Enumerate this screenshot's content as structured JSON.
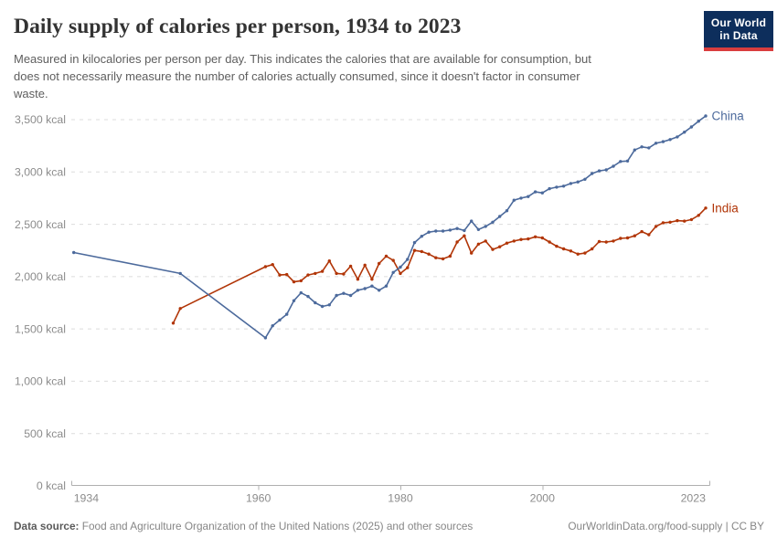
{
  "header": {
    "title": "Daily supply of calories per person, 1934 to 2023",
    "subtitle_lines": [
      "Measured in kilocalories per person per day. This indicates the calories that are available for consumption, but",
      "does not necessarily measure the number of calories actually consumed, since it doesn't factor in consumer",
      "waste."
    ],
    "logo": {
      "line1": "Our World",
      "line2": "in Data",
      "bg_color": "#0d2e5c",
      "accent_color": "#d93d3e"
    }
  },
  "footer": {
    "source_label": "Data source:",
    "source_text": " Food and Agriculture Organization of the United Nations (2025) and other sources",
    "credit_text": "OurWorldinData.org/food-supply | CC BY"
  },
  "chart_data": {
    "type": "line",
    "title": "Daily supply of calories per person, 1934 to 2023",
    "unit": "kcal",
    "xlabel": "",
    "ylabel": "",
    "xlim": [
      1933.65,
      2023.65
    ],
    "ylim": [
      0,
      3500
    ],
    "x_ticks": [
      1934,
      1960,
      1980,
      2000,
      2023
    ],
    "y_ticks": [
      0,
      500,
      1000,
      1500,
      2000,
      2500,
      3000,
      3500
    ],
    "y_tick_suffix": " kcal",
    "grid": "horizontal-dashed",
    "legend_position": "end-of-line-labels",
    "colors": {
      "grid": "#dcdcdc",
      "axis": "#b0b0b0",
      "tick_label": "#8c8c8c"
    },
    "series": [
      {
        "name": "India",
        "color": "#B13507",
        "points": [
          [
            1948,
            1555
          ],
          [
            1949,
            1695
          ],
          [
            1961,
            2095
          ],
          [
            1962,
            2115
          ],
          [
            1963,
            2015
          ],
          [
            1964,
            2020
          ],
          [
            1965,
            1950
          ],
          [
            1966,
            1960
          ],
          [
            1967,
            2015
          ],
          [
            1968,
            2030
          ],
          [
            1969,
            2050
          ],
          [
            1970,
            2150
          ],
          [
            1971,
            2030
          ],
          [
            1972,
            2025
          ],
          [
            1973,
            2100
          ],
          [
            1974,
            1975
          ],
          [
            1975,
            2110
          ],
          [
            1976,
            1975
          ],
          [
            1977,
            2125
          ],
          [
            1978,
            2195
          ],
          [
            1979,
            2155
          ],
          [
            1980,
            2030
          ],
          [
            1981,
            2085
          ],
          [
            1982,
            2250
          ],
          [
            1983,
            2240
          ],
          [
            1984,
            2215
          ],
          [
            1985,
            2180
          ],
          [
            1986,
            2170
          ],
          [
            1987,
            2195
          ],
          [
            1988,
            2330
          ],
          [
            1989,
            2390
          ],
          [
            1990,
            2225
          ],
          [
            1991,
            2310
          ],
          [
            1992,
            2340
          ],
          [
            1993,
            2260
          ],
          [
            1994,
            2285
          ],
          [
            1995,
            2320
          ],
          [
            1996,
            2340
          ],
          [
            1997,
            2355
          ],
          [
            1998,
            2360
          ],
          [
            1999,
            2380
          ],
          [
            2000,
            2370
          ],
          [
            2001,
            2330
          ],
          [
            2002,
            2290
          ],
          [
            2003,
            2265
          ],
          [
            2004,
            2245
          ],
          [
            2005,
            2215
          ],
          [
            2006,
            2225
          ],
          [
            2007,
            2265
          ],
          [
            2008,
            2335
          ],
          [
            2009,
            2330
          ],
          [
            2010,
            2340
          ],
          [
            2011,
            2365
          ],
          [
            2012,
            2370
          ],
          [
            2013,
            2390
          ],
          [
            2014,
            2430
          ],
          [
            2015,
            2400
          ],
          [
            2016,
            2480
          ],
          [
            2017,
            2515
          ],
          [
            2018,
            2520
          ],
          [
            2019,
            2535
          ],
          [
            2020,
            2530
          ],
          [
            2021,
            2545
          ],
          [
            2022,
            2585
          ],
          [
            2023,
            2655
          ]
        ]
      },
      {
        "name": "China",
        "color": "#4C6A9C",
        "points": [
          [
            1934,
            2230
          ],
          [
            1949,
            2030
          ],
          [
            1961,
            1415
          ],
          [
            1962,
            1530
          ],
          [
            1963,
            1585
          ],
          [
            1964,
            1640
          ],
          [
            1965,
            1770
          ],
          [
            1966,
            1845
          ],
          [
            1967,
            1810
          ],
          [
            1968,
            1750
          ],
          [
            1969,
            1715
          ],
          [
            1970,
            1730
          ],
          [
            1971,
            1820
          ],
          [
            1972,
            1840
          ],
          [
            1973,
            1820
          ],
          [
            1974,
            1870
          ],
          [
            1975,
            1885
          ],
          [
            1976,
            1910
          ],
          [
            1977,
            1870
          ],
          [
            1978,
            1910
          ],
          [
            1979,
            2040
          ],
          [
            1980,
            2090
          ],
          [
            1981,
            2165
          ],
          [
            1982,
            2325
          ],
          [
            1983,
            2385
          ],
          [
            1984,
            2425
          ],
          [
            1985,
            2435
          ],
          [
            1986,
            2435
          ],
          [
            1987,
            2445
          ],
          [
            1988,
            2460
          ],
          [
            1989,
            2440
          ],
          [
            1990,
            2530
          ],
          [
            1991,
            2450
          ],
          [
            1992,
            2480
          ],
          [
            1993,
            2520
          ],
          [
            1994,
            2575
          ],
          [
            1995,
            2630
          ],
          [
            1996,
            2730
          ],
          [
            1997,
            2750
          ],
          [
            1998,
            2765
          ],
          [
            1999,
            2810
          ],
          [
            2000,
            2800
          ],
          [
            2001,
            2840
          ],
          [
            2002,
            2855
          ],
          [
            2003,
            2865
          ],
          [
            2004,
            2890
          ],
          [
            2005,
            2905
          ],
          [
            2006,
            2930
          ],
          [
            2007,
            2985
          ],
          [
            2008,
            3010
          ],
          [
            2009,
            3020
          ],
          [
            2010,
            3055
          ],
          [
            2011,
            3100
          ],
          [
            2012,
            3105
          ],
          [
            2013,
            3210
          ],
          [
            2014,
            3240
          ],
          [
            2015,
            3230
          ],
          [
            2016,
            3275
          ],
          [
            2017,
            3290
          ],
          [
            2018,
            3310
          ],
          [
            2019,
            3335
          ],
          [
            2020,
            3380
          ],
          [
            2021,
            3430
          ],
          [
            2022,
            3485
          ],
          [
            2023,
            3535
          ]
        ]
      }
    ]
  }
}
